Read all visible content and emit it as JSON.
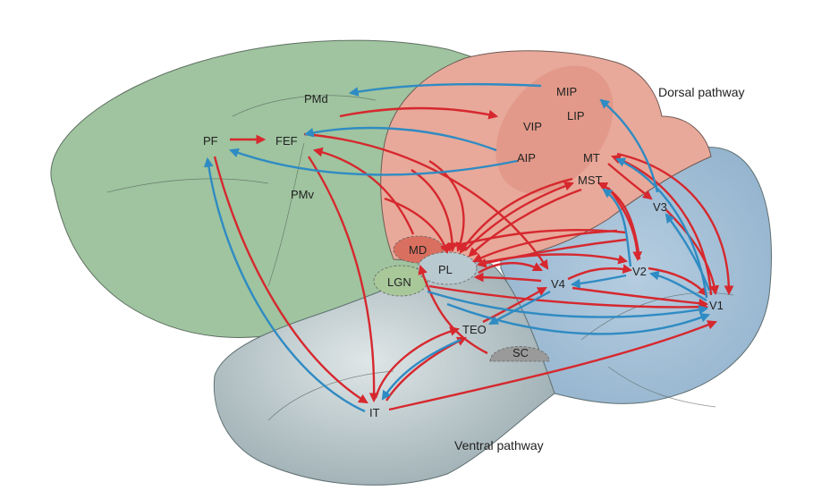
{
  "colors": {
    "feedforward_arrow": "#d6282e",
    "feedback_arrow": "#2f8bc3",
    "frontal_lobe": "#9fc49f",
    "dorsal_region": "#e8a99a",
    "occipital_region": "#9fbdd6",
    "temporal_region": "#b9c6c9"
  },
  "pathways": {
    "dorsal": "Dorsal pathway",
    "ventral": "Ventral pathway"
  },
  "areas": {
    "pmd": "PMd",
    "pmv": "PMv",
    "pf": "PF",
    "fef": "FEF",
    "mip": "MIP",
    "vip": "VIP",
    "lip": "LIP",
    "aip": "AIP",
    "mt": "MT",
    "mst": "MST",
    "v3": "V3",
    "md": "MD",
    "pl": "PL",
    "lgn": "LGN",
    "v4": "V4",
    "v2": "V2",
    "v1": "V1",
    "teo": "TEO",
    "sc": "SC",
    "it": "IT"
  }
}
